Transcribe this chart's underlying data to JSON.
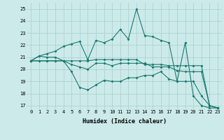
{
  "xlabel": "Humidex (Indice chaleur)",
  "background_color": "#cceaea",
  "grid_color": "#aacccc",
  "line_color": "#1a7a6e",
  "xlim": [
    -0.5,
    23.5
  ],
  "ylim": [
    16.7,
    25.5
  ],
  "yticks": [
    17,
    18,
    19,
    20,
    21,
    22,
    23,
    24,
    25
  ],
  "xticks": [
    0,
    1,
    2,
    3,
    4,
    5,
    6,
    7,
    8,
    9,
    10,
    11,
    12,
    13,
    14,
    15,
    16,
    17,
    18,
    19,
    20,
    21,
    22,
    23
  ],
  "line1_x": [
    0,
    1,
    2,
    3,
    4,
    5,
    6,
    7,
    8,
    9,
    10,
    11,
    12,
    13,
    14,
    15,
    16,
    17,
    18,
    19,
    20,
    21,
    22,
    23
  ],
  "line1_y": [
    20.7,
    21.1,
    21.0,
    21.0,
    20.7,
    19.8,
    18.5,
    18.3,
    18.7,
    19.1,
    19.0,
    19.0,
    19.3,
    19.3,
    19.5,
    19.5,
    19.8,
    19.2,
    19.0,
    19.0,
    19.0,
    17.8,
    17.0,
    16.8
  ],
  "line2_x": [
    0,
    1,
    2,
    3,
    4,
    5,
    6,
    7,
    8,
    9,
    10,
    11,
    12,
    13,
    14,
    15,
    16,
    17,
    18,
    19,
    20,
    21,
    22,
    23
  ],
  "line2_y": [
    20.7,
    20.7,
    20.7,
    20.7,
    20.7,
    20.7,
    20.7,
    20.7,
    20.8,
    20.8,
    20.8,
    20.8,
    20.8,
    20.8,
    20.4,
    20.4,
    20.4,
    20.3,
    20.3,
    20.3,
    20.3,
    20.3,
    17.0,
    16.8
  ],
  "line3_x": [
    0,
    1,
    2,
    3,
    4,
    5,
    6,
    7,
    8,
    9,
    10,
    11,
    12,
    13,
    14,
    15,
    16,
    17,
    18,
    19,
    20,
    21,
    22,
    23
  ],
  "line3_y": [
    20.7,
    20.7,
    20.7,
    20.7,
    20.7,
    20.4,
    20.2,
    20.0,
    20.5,
    20.5,
    20.3,
    20.5,
    20.5,
    20.5,
    20.5,
    20.2,
    20.2,
    20.2,
    19.9,
    19.8,
    19.8,
    19.8,
    17.0,
    16.8
  ],
  "line4_x": [
    0,
    1,
    2,
    3,
    4,
    5,
    6,
    7,
    8,
    9,
    10,
    11,
    12,
    13,
    14,
    15,
    16,
    17,
    18,
    19,
    20,
    21,
    22,
    23
  ],
  "line4_y": [
    20.7,
    21.1,
    21.3,
    21.5,
    21.9,
    22.1,
    22.3,
    20.8,
    22.4,
    22.2,
    22.5,
    23.3,
    22.5,
    25.0,
    22.8,
    22.7,
    22.4,
    22.2,
    19.0,
    22.2,
    17.8,
    17.0,
    16.8,
    16.8
  ]
}
